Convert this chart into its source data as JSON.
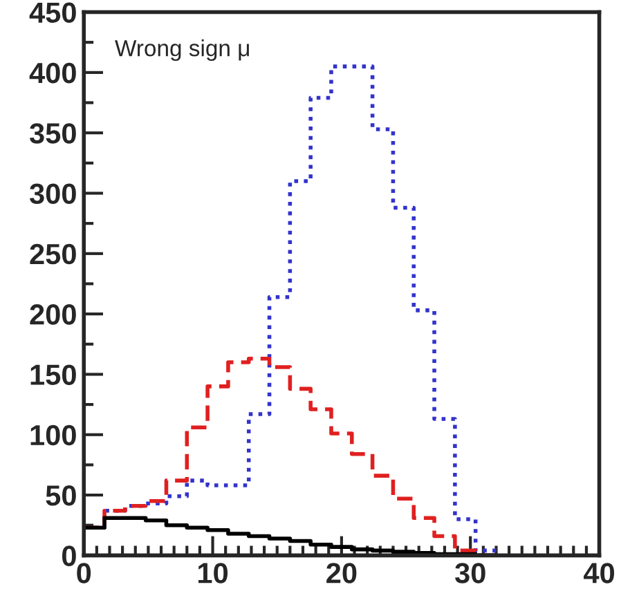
{
  "chart_data": {
    "type": "histogram",
    "bins": [
      0,
      1.6,
      3.2,
      4.8,
      6.4,
      8,
      9.6,
      11.2,
      12.8,
      14.4,
      16,
      17.6,
      19.2,
      20.8,
      22.4,
      24,
      25.6,
      27.2,
      28.8,
      30.4,
      32
    ],
    "series": [
      {
        "color": "#3333cc",
        "line_style": "dotted",
        "values": [
          23,
          37,
          41,
          43,
          49,
          62,
          58,
          58,
          117,
          214,
          310,
          379,
          405,
          405,
          353,
          288,
          203,
          113,
          30,
          4
        ]
      },
      {
        "color": "#e02020",
        "line_style": "dashed",
        "values": [
          23,
          37,
          41,
          45,
          62,
          106,
          140,
          160,
          163,
          156,
          138,
          121,
          101,
          84,
          66,
          47,
          31,
          16,
          4,
          0
        ]
      },
      {
        "color": "#000000",
        "line_style": "solid",
        "values": [
          23,
          31,
          31,
          29,
          25,
          23,
          21,
          18,
          16,
          14,
          12,
          9,
          7,
          5,
          4,
          3,
          2,
          1,
          1,
          0
        ]
      }
    ],
    "xlim": [
      0,
      40
    ],
    "ylim": [
      0,
      450
    ],
    "xticks": [
      0,
      10,
      20,
      30,
      40
    ],
    "yticks": [
      0,
      50,
      100,
      150,
      200,
      250,
      300,
      350,
      400,
      450
    ],
    "annotations": [
      "Wrong sign μ"
    ],
    "grid": false
  }
}
